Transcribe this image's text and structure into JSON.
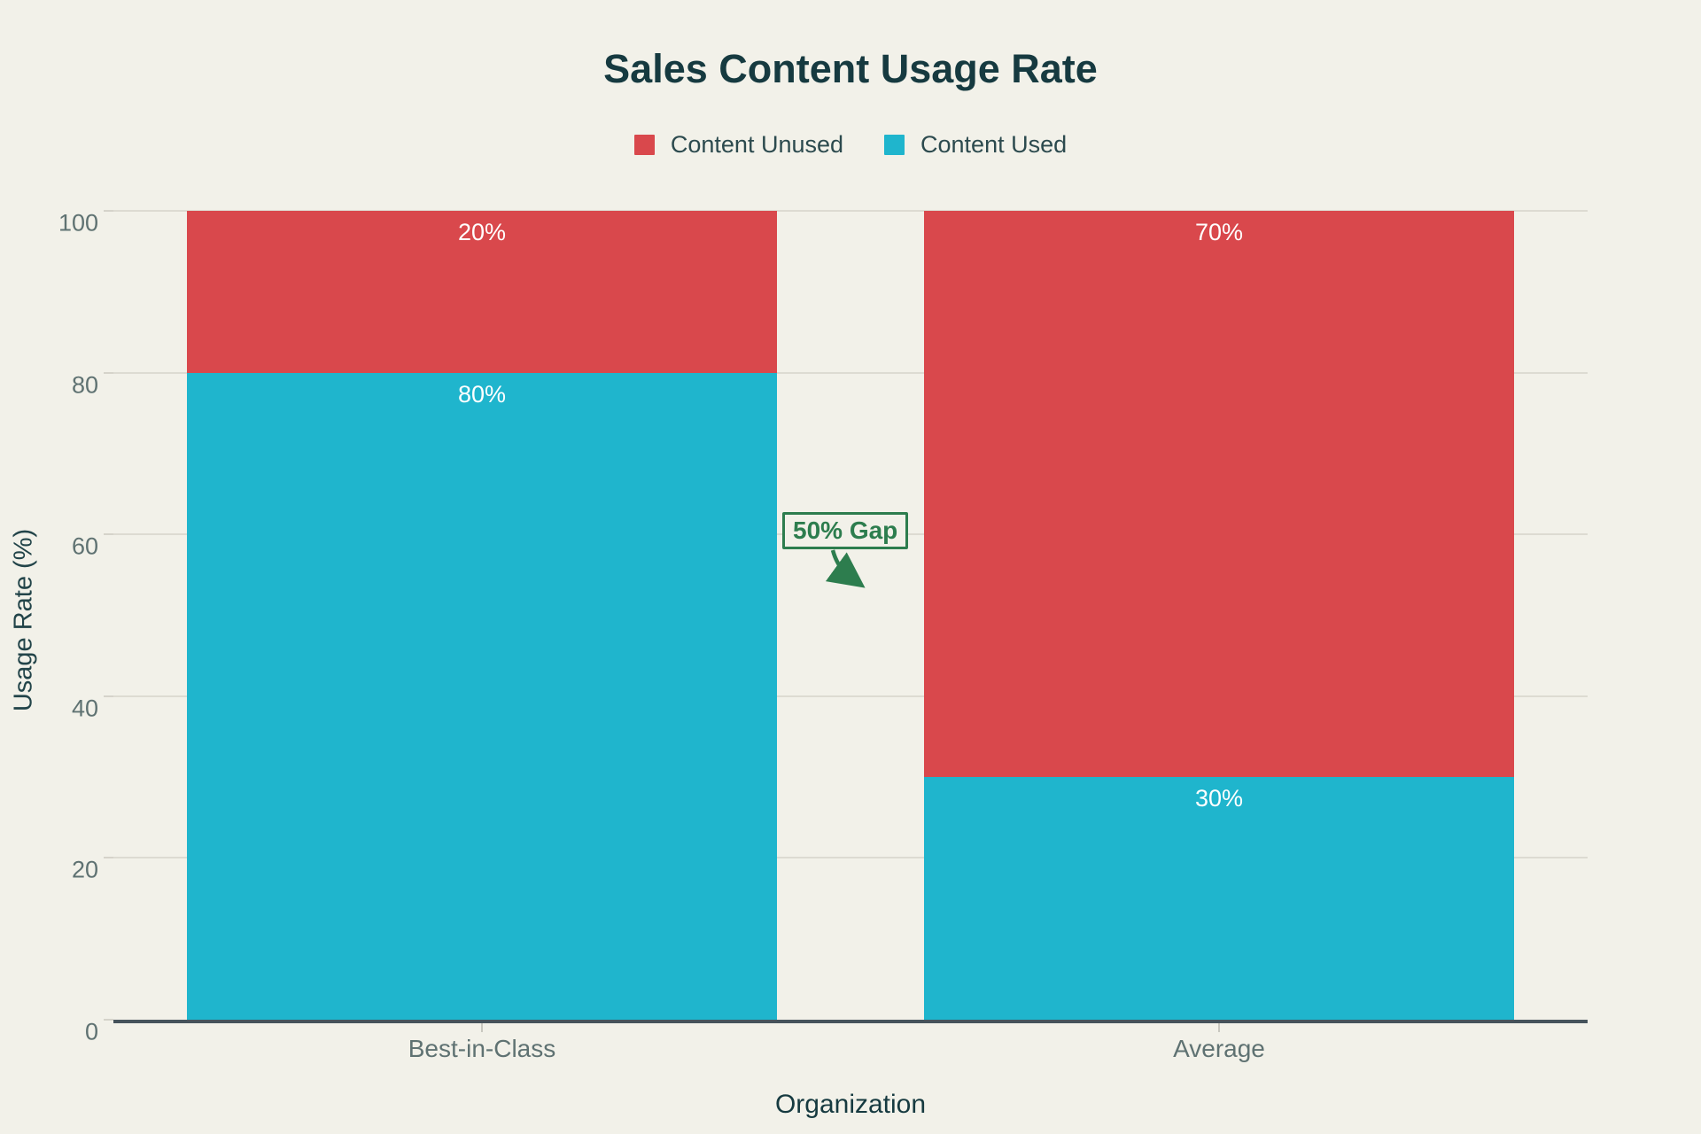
{
  "page": {
    "background": "#F2F1E9",
    "title_color": "#163A40",
    "tick_label_color": "#5F7272",
    "gridline_color": "#DDDBD2",
    "axis_line_color": "#46535B"
  },
  "chart_data": {
    "type": "bar",
    "variant": "stacked-column",
    "title": "Sales Content Usage Rate",
    "xlabel": "Organization",
    "ylabel": "Usage Rate (%)",
    "categories": [
      "Best-in-Class",
      "Average"
    ],
    "series": [
      {
        "name": "Content Used",
        "color": "#1FB5CD",
        "values": [
          80,
          30
        ]
      },
      {
        "name": "Content Unused",
        "color": "#D9484C",
        "values": [
          20,
          70
        ]
      }
    ],
    "value_label_format": "{value}%",
    "ylim": [
      0,
      100
    ],
    "yticks": [
      0,
      20,
      40,
      60,
      80,
      100
    ],
    "grid": true,
    "legend_position": "top",
    "legend_order": [
      "Content Unused",
      "Content Used"
    ],
    "annotation": {
      "text": "50% Gap",
      "color": "#2D7D4E"
    }
  }
}
